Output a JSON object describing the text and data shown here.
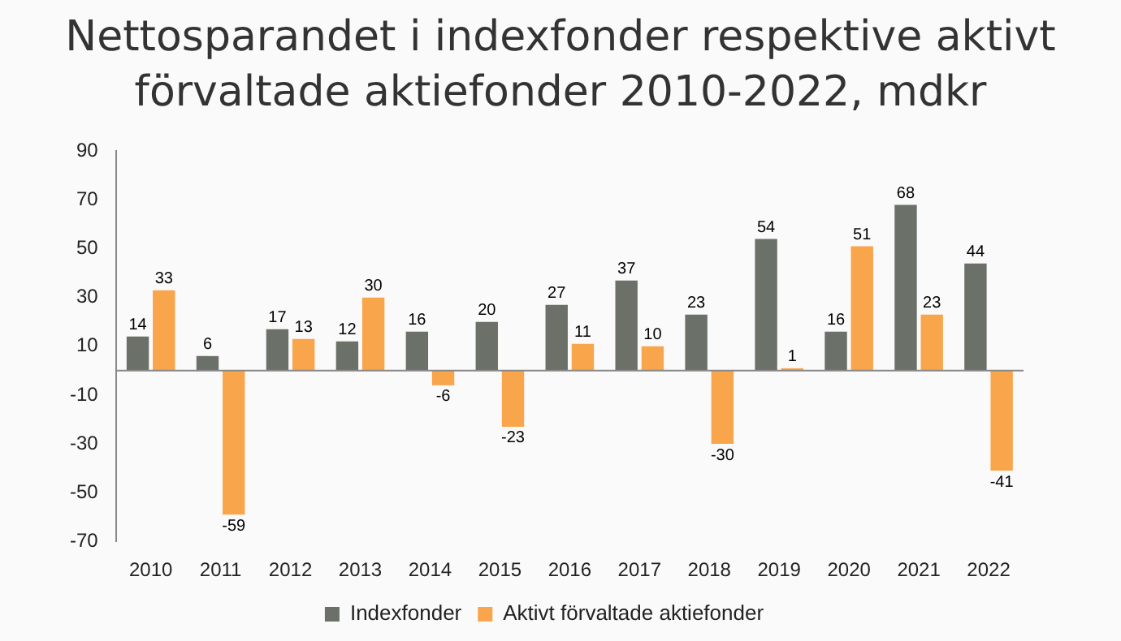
{
  "chart_data": {
    "type": "bar",
    "title": "Nettosparandet i indexfonder respektive aktivt förvaltade aktiefonder 2010-2022, mdkr",
    "categories": [
      "2010",
      "2011",
      "2012",
      "2013",
      "2014",
      "2015",
      "2016",
      "2017",
      "2018",
      "2019",
      "2020",
      "2021",
      "2022"
    ],
    "series": [
      {
        "name": "Indexfonder",
        "color": "#6b7068",
        "values": [
          14,
          6,
          17,
          12,
          16,
          20,
          27,
          37,
          23,
          54,
          16,
          68,
          44
        ]
      },
      {
        "name": "Aktivt förvaltade aktiefonder",
        "color": "#f9a54b",
        "values": [
          33,
          -59,
          13,
          30,
          -6,
          -23,
          11,
          10,
          -30,
          1,
          51,
          23,
          -41
        ]
      }
    ],
    "ylim": [
      -70,
      90
    ],
    "yticks": [
      -70,
      -50,
      -30,
      -10,
      10,
      30,
      50,
      70,
      90
    ],
    "data_labels": true,
    "legend": "bottom",
    "grid": false
  }
}
